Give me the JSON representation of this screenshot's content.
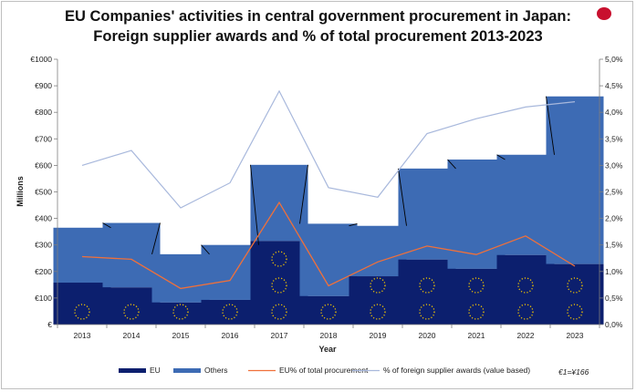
{
  "title_line1": "EU Companies' activities in central government procurement in Japan:",
  "title_line2": "Foreign supplier awards and % of total procurement 2013-2023",
  "logo_icon": "eu-japan-logo-icon",
  "note": "€1=¥166",
  "colors": {
    "eu": "#0c1f6e",
    "others": "#3d6bb4",
    "eu_pct": "#f0703a",
    "foreign_pct": "#a8b8dc",
    "stars": "#f2c500",
    "connector": "#000000"
  },
  "chart_data": {
    "type": "bar",
    "stacked": true,
    "title": "EU Companies' activities in central government procurement in Japan: Foreign supplier awards and % of total procurement 2013-2023",
    "xlabel": "Year",
    "ylabel": "Millions",
    "categories": [
      "2013",
      "2014",
      "2015",
      "2016",
      "2017",
      "2018",
      "2019",
      "2020",
      "2021",
      "2022",
      "2023"
    ],
    "ylim": [
      0,
      1000
    ],
    "y_ticks": [
      0,
      100,
      200,
      300,
      400,
      500,
      600,
      700,
      800,
      900,
      1000
    ],
    "y_tick_labels": [
      "€",
      "€100",
      "€200",
      "€300",
      "€400",
      "€500",
      "€600",
      "€700",
      "€800",
      "€900",
      "€1000"
    ],
    "y2lim": [
      0,
      5
    ],
    "y2_ticks": [
      0,
      0.5,
      1,
      1.5,
      2,
      2.5,
      3,
      3.5,
      4,
      4.5,
      5
    ],
    "y2_tick_labels": [
      "0,0%",
      "0,5%",
      "1,0%",
      "1,5%",
      "2,0%",
      "2,5%",
      "3,0%",
      "3,5%",
      "4,0%",
      "4,5%",
      "5,0%"
    ],
    "series": [
      {
        "name": "EU",
        "type": "bar",
        "axis": "left",
        "values": [
          158,
          140,
          83,
          93,
          315,
          107,
          182,
          245,
          210,
          262,
          228
        ]
      },
      {
        "name": "Others",
        "type": "bar",
        "axis": "left",
        "values": [
          207,
          243,
          182,
          207,
          287,
          273,
          190,
          343,
          412,
          378,
          632
        ]
      },
      {
        "name": "EU% of total procurement",
        "type": "line",
        "axis": "right",
        "values": [
          1.28,
          1.23,
          0.68,
          0.83,
          2.3,
          0.73,
          1.18,
          1.48,
          1.32,
          1.67,
          1.1
        ]
      },
      {
        "name": "% of foreign supplier awards (value based)",
        "type": "line",
        "axis": "right",
        "values": [
          3.0,
          3.28,
          2.2,
          2.67,
          4.4,
          2.58,
          2.4,
          3.6,
          3.88,
          4.1,
          4.2
        ]
      }
    ],
    "legend": [
      "EU",
      "Others",
      "EU% of total procurement",
      "% of foreign supplier awards (value based)"
    ],
    "legend_position": "bottom",
    "grid": false
  }
}
